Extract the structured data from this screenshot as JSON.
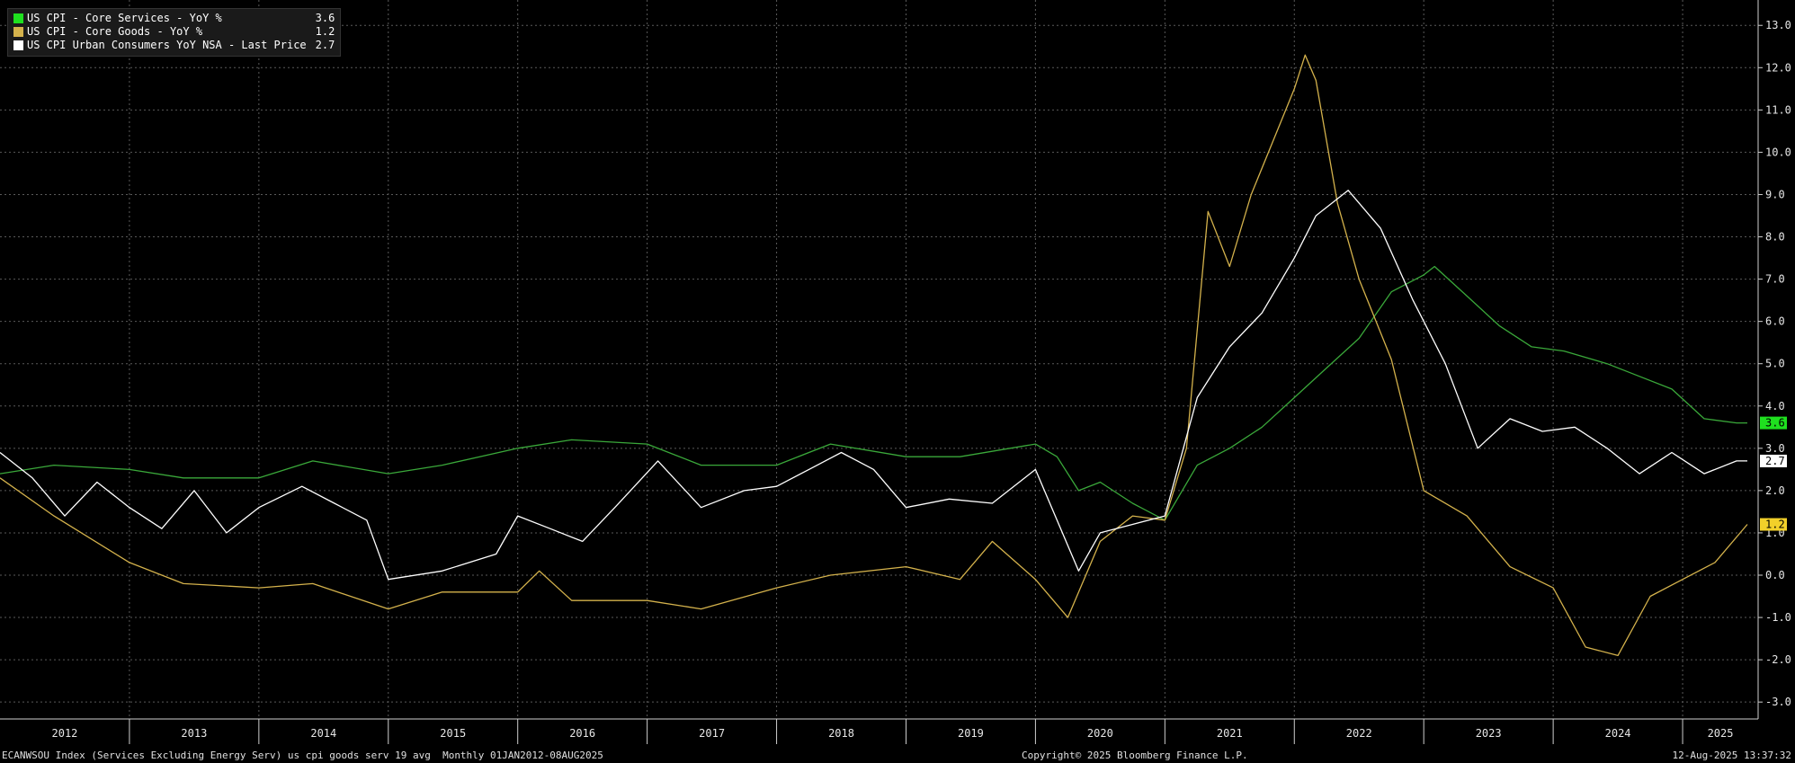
{
  "legend": [
    {
      "name": "US CPI - Core Services - YoY %",
      "value": "3.6",
      "color": "#1fe01f"
    },
    {
      "name": "US CPI - Core Goods - YoY %",
      "value": "1.2",
      "color": "#d4b24c"
    },
    {
      "name": "US CPI Urban Consumers YoY NSA - Last Price",
      "value": "2.7",
      "color": "#ffffff"
    }
  ],
  "footer": {
    "left": "ECANWSOU Index (Services Excluding Energy Serv) us cpi goods serv 19 avg  Monthly 01JAN2012-08AUG2025",
    "middle": "Copyright© 2025 Bloomberg Finance L.P.",
    "right": "12-Aug-2025 13:37:32"
  },
  "chart_data": {
    "type": "line",
    "x_start": "2012-01",
    "x_end": "2025-08",
    "x_ticks": [
      "2012",
      "2013",
      "2014",
      "2015",
      "2016",
      "2017",
      "2018",
      "2019",
      "2020",
      "2021",
      "2022",
      "2023",
      "2024",
      "2025"
    ],
    "ylim": [
      -3.4,
      13.6
    ],
    "y_ticks": [
      "-3.0",
      "-2.0",
      "-1.0",
      "0.0",
      "1.0",
      "2.0",
      "3.0",
      "4.0",
      "5.0",
      "6.0",
      "7.0",
      "8.0",
      "9.0",
      "10.0",
      "11.0",
      "12.0",
      "13.0"
    ],
    "grid": true,
    "legend_position": "top-left",
    "series": [
      {
        "name": "US CPI - Core Services - YoY %",
        "color": "#3aa83a",
        "last_label": "3.6",
        "badge_color": "#1fe01f",
        "points": [
          [
            "2012-01",
            2.4
          ],
          [
            "2012-06",
            2.6
          ],
          [
            "2013-01",
            2.5
          ],
          [
            "2013-06",
            2.3
          ],
          [
            "2014-01",
            2.3
          ],
          [
            "2014-06",
            2.7
          ],
          [
            "2015-01",
            2.4
          ],
          [
            "2015-06",
            2.6
          ],
          [
            "2016-01",
            3.0
          ],
          [
            "2016-06",
            3.2
          ],
          [
            "2017-01",
            3.1
          ],
          [
            "2017-06",
            2.6
          ],
          [
            "2018-01",
            2.6
          ],
          [
            "2018-06",
            3.1
          ],
          [
            "2019-01",
            2.8
          ],
          [
            "2019-06",
            2.8
          ],
          [
            "2020-01",
            3.1
          ],
          [
            "2020-03",
            2.8
          ],
          [
            "2020-05",
            2.0
          ],
          [
            "2020-07",
            2.2
          ],
          [
            "2020-10",
            1.7
          ],
          [
            "2021-01",
            1.3
          ],
          [
            "2021-04",
            2.6
          ],
          [
            "2021-07",
            3.0
          ],
          [
            "2021-10",
            3.5
          ],
          [
            "2022-01",
            4.2
          ],
          [
            "2022-04",
            4.9
          ],
          [
            "2022-07",
            5.6
          ],
          [
            "2022-10",
            6.7
          ],
          [
            "2023-01",
            7.1
          ],
          [
            "2023-02",
            7.3
          ],
          [
            "2023-05",
            6.6
          ],
          [
            "2023-08",
            5.9
          ],
          [
            "2023-11",
            5.4
          ],
          [
            "2024-02",
            5.3
          ],
          [
            "2024-06",
            5.0
          ],
          [
            "2024-09",
            4.7
          ],
          [
            "2024-12",
            4.4
          ],
          [
            "2025-03",
            3.7
          ],
          [
            "2025-06",
            3.6
          ],
          [
            "2025-07",
            3.6
          ]
        ]
      },
      {
        "name": "US CPI - Core Goods - YoY %",
        "color": "#d4b24c",
        "last_label": "1.2",
        "badge_color": "#f2d02a",
        "points": [
          [
            "2012-01",
            2.3
          ],
          [
            "2012-06",
            1.4
          ],
          [
            "2013-01",
            0.3
          ],
          [
            "2013-06",
            -0.2
          ],
          [
            "2014-01",
            -0.3
          ],
          [
            "2014-06",
            -0.2
          ],
          [
            "2015-01",
            -0.8
          ],
          [
            "2015-06",
            -0.4
          ],
          [
            "2016-01",
            -0.4
          ],
          [
            "2016-03",
            0.1
          ],
          [
            "2016-06",
            -0.6
          ],
          [
            "2017-01",
            -0.6
          ],
          [
            "2017-06",
            -0.8
          ],
          [
            "2018-01",
            -0.3
          ],
          [
            "2018-06",
            0.0
          ],
          [
            "2019-01",
            0.2
          ],
          [
            "2019-06",
            -0.1
          ],
          [
            "2019-09",
            0.8
          ],
          [
            "2020-01",
            -0.1
          ],
          [
            "2020-04",
            -1.0
          ],
          [
            "2020-07",
            0.8
          ],
          [
            "2020-10",
            1.4
          ],
          [
            "2021-01",
            1.3
          ],
          [
            "2021-03",
            3.0
          ],
          [
            "2021-05",
            8.6
          ],
          [
            "2021-07",
            7.3
          ],
          [
            "2021-09",
            9.0
          ],
          [
            "2022-01",
            11.5
          ],
          [
            "2022-02",
            12.3
          ],
          [
            "2022-03",
            11.7
          ],
          [
            "2022-05",
            8.8
          ],
          [
            "2022-07",
            7.0
          ],
          [
            "2022-10",
            5.1
          ],
          [
            "2023-01",
            2.0
          ],
          [
            "2023-05",
            1.4
          ],
          [
            "2023-09",
            0.2
          ],
          [
            "2024-01",
            -0.3
          ],
          [
            "2024-04",
            -1.7
          ],
          [
            "2024-07",
            -1.9
          ],
          [
            "2024-10",
            -0.5
          ],
          [
            "2025-01",
            -0.1
          ],
          [
            "2025-04",
            0.3
          ],
          [
            "2025-07",
            1.2
          ]
        ]
      },
      {
        "name": "US CPI Urban Consumers YoY NSA - Last Price",
        "color": "#ffffff",
        "last_label": "2.7",
        "badge_color": "#ffffff",
        "points": [
          [
            "2012-01",
            2.9
          ],
          [
            "2012-04",
            2.3
          ],
          [
            "2012-07",
            1.4
          ],
          [
            "2012-10",
            2.2
          ],
          [
            "2013-01",
            1.6
          ],
          [
            "2013-04",
            1.1
          ],
          [
            "2013-07",
            2.0
          ],
          [
            "2013-10",
            1.0
          ],
          [
            "2014-01",
            1.6
          ],
          [
            "2014-05",
            2.1
          ],
          [
            "2014-08",
            1.7
          ],
          [
            "2014-11",
            1.3
          ],
          [
            "2015-01",
            -0.1
          ],
          [
            "2015-06",
            0.1
          ],
          [
            "2015-11",
            0.5
          ],
          [
            "2016-01",
            1.4
          ],
          [
            "2016-04",
            1.1
          ],
          [
            "2016-07",
            0.8
          ],
          [
            "2016-10",
            1.6
          ],
          [
            "2017-02",
            2.7
          ],
          [
            "2017-06",
            1.6
          ],
          [
            "2017-10",
            2.0
          ],
          [
            "2018-01",
            2.1
          ],
          [
            "2018-04",
            2.5
          ],
          [
            "2018-07",
            2.9
          ],
          [
            "2018-10",
            2.5
          ],
          [
            "2019-01",
            1.6
          ],
          [
            "2019-05",
            1.8
          ],
          [
            "2019-09",
            1.7
          ],
          [
            "2020-01",
            2.5
          ],
          [
            "2020-05",
            0.1
          ],
          [
            "2020-07",
            1.0
          ],
          [
            "2020-10",
            1.2
          ],
          [
            "2021-01",
            1.4
          ],
          [
            "2021-04",
            4.2
          ],
          [
            "2021-07",
            5.4
          ],
          [
            "2021-10",
            6.2
          ],
          [
            "2022-01",
            7.5
          ],
          [
            "2022-03",
            8.5
          ],
          [
            "2022-06",
            9.1
          ],
          [
            "2022-09",
            8.2
          ],
          [
            "2022-12",
            6.5
          ],
          [
            "2023-03",
            5.0
          ],
          [
            "2023-06",
            3.0
          ],
          [
            "2023-09",
            3.7
          ],
          [
            "2023-12",
            3.4
          ],
          [
            "2024-03",
            3.5
          ],
          [
            "2024-06",
            3.0
          ],
          [
            "2024-09",
            2.4
          ],
          [
            "2024-12",
            2.9
          ],
          [
            "2025-03",
            2.4
          ],
          [
            "2025-06",
            2.7
          ],
          [
            "2025-07",
            2.7
          ]
        ]
      }
    ]
  }
}
